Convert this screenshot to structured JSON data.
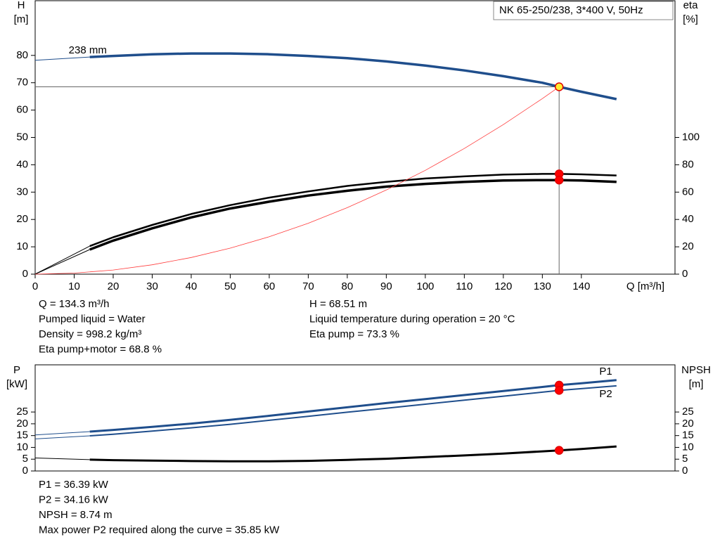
{
  "chart_data": [
    {
      "type": "line",
      "title": "NK 65-250/238, 3*400 V, 50Hz",
      "ylabel": [
        "H",
        "[m]"
      ],
      "y2label": [
        "eta",
        "[%]"
      ],
      "xlabel": "Q [m³/h]",
      "xlim": [
        0,
        164
      ],
      "xticks": [
        0,
        10,
        20,
        30,
        40,
        50,
        60,
        70,
        80,
        90,
        100,
        110,
        120,
        130,
        140
      ],
      "ylim": [
        0,
        100
      ],
      "yticks": [
        0,
        10,
        20,
        30,
        40,
        50,
        60,
        70,
        80
      ],
      "y2lim": [
        0,
        200
      ],
      "y2ticks": [
        0,
        20,
        40,
        60,
        80,
        100
      ],
      "crosshair": true,
      "series": [
        {
          "color": "#1f4e8c",
          "width": 1,
          "x": [
            0,
            14
          ],
          "values": [
            78.2,
            79.4
          ]
        },
        {
          "name": "238 mm",
          "color": "#1f4e8c",
          "width": 3.5,
          "x": [
            14,
            20,
            30,
            40,
            50,
            60,
            70,
            80,
            90,
            100,
            110,
            120,
            130,
            134.3,
            140,
            149
          ],
          "values": [
            79.4,
            79.8,
            80.4,
            80.7,
            80.7,
            80.4,
            79.8,
            79.0,
            77.8,
            76.3,
            74.5,
            72.4,
            70.0,
            68.51,
            66.7,
            64.0
          ]
        },
        {
          "color": "#000000",
          "width": 1,
          "axis": "y2",
          "x": [
            0,
            14
          ],
          "values": [
            0,
            20.5
          ]
        },
        {
          "color": "#000000",
          "width": 2.5,
          "axis": "y2",
          "x": [
            14,
            20,
            30,
            40,
            50,
            60,
            70,
            80,
            90,
            100,
            110,
            120,
            130,
            134.3,
            140,
            149
          ],
          "values": [
            20.5,
            27,
            36,
            44,
            50.5,
            56,
            60.5,
            64.5,
            67.5,
            70,
            71.5,
            72.8,
            73.3,
            73.3,
            73.0,
            72.2
          ]
        },
        {
          "color": "#000000",
          "width": 1,
          "axis": "y2",
          "x": [
            0,
            14
          ],
          "values": [
            0,
            18
          ]
        },
        {
          "color": "#000000",
          "width": 3.5,
          "axis": "y2",
          "x": [
            14,
            20,
            30,
            40,
            50,
            60,
            70,
            80,
            90,
            100,
            110,
            120,
            130,
            134.3,
            140,
            149
          ],
          "values": [
            18,
            24.5,
            33.5,
            41.5,
            48,
            53,
            57.5,
            61,
            64,
            66,
            67.5,
            68.5,
            68.8,
            68.8,
            68.5,
            67.5
          ]
        },
        {
          "color": "#ff3b3b",
          "width": 0.8,
          "x": [
            0,
            10,
            20,
            30,
            40,
            50,
            60,
            70,
            80,
            90,
            100,
            110,
            120,
            130,
            134.3
          ],
          "values": [
            0,
            0.38,
            1.52,
            3.42,
            6.08,
            9.5,
            13.67,
            18.61,
            24.31,
            30.77,
            37.98,
            45.96,
            54.7,
            64.19,
            68.51
          ]
        }
      ],
      "markers": [
        {
          "x": 134.3,
          "y": 68.51,
          "color": "#ffee33"
        },
        {
          "x": 134.3,
          "y": 73.3,
          "color": "#ff0000",
          "axis": "y2"
        },
        {
          "x": 134.3,
          "y": 68.8,
          "color": "#ff0000",
          "axis": "y2"
        }
      ],
      "annotations": [
        [
          "Q = 134.3 m³/h",
          "Pumped liquid = Water",
          "Density = 998.2 kg/m³",
          "Eta pump+motor = 68.8 %"
        ],
        [
          "H = 68.51 m",
          "Liquid temperature during operation = 20 °C",
          "Eta pump = 73.3 %"
        ]
      ]
    },
    {
      "type": "line",
      "ylabel": [
        "P",
        "[kW]"
      ],
      "y2label": [
        "NPSH",
        "[m]"
      ],
      "xlim": [
        0,
        164
      ],
      "ylim": [
        0,
        45
      ],
      "yticks": [
        0,
        5,
        10,
        15,
        20,
        25
      ],
      "y2lim": [
        0,
        45
      ],
      "y2ticks": [
        0,
        5,
        10,
        15,
        20,
        25
      ],
      "series": [
        {
          "color": "#1f4e8c",
          "width": 1,
          "x": [
            0,
            14
          ],
          "values": [
            15.3,
            16.7
          ]
        },
        {
          "name": "P1",
          "color": "#1f4e8c",
          "width": 3,
          "x": [
            14,
            20,
            30,
            40,
            50,
            60,
            70,
            80,
            90,
            100,
            110,
            120,
            130,
            134.3,
            140,
            149
          ],
          "values": [
            16.7,
            17.4,
            18.7,
            20.1,
            21.7,
            23.4,
            25.2,
            27.0,
            28.8,
            30.5,
            32.2,
            33.9,
            35.6,
            36.39,
            37.2,
            38.5
          ]
        },
        {
          "color": "#1f4e8c",
          "width": 1,
          "x": [
            0,
            14
          ],
          "values": [
            13.6,
            14.9
          ]
        },
        {
          "name": "P2",
          "color": "#1f4e8c",
          "width": 2,
          "x": [
            14,
            20,
            30,
            40,
            50,
            60,
            70,
            80,
            90,
            100,
            110,
            120,
            130,
            134.3,
            140,
            149
          ],
          "values": [
            14.9,
            15.6,
            16.9,
            18.3,
            19.8,
            21.5,
            23.2,
            24.9,
            26.6,
            28.3,
            30.0,
            31.7,
            33.4,
            34.16,
            34.9,
            36.1
          ]
        },
        {
          "color": "#000000",
          "width": 1,
          "axis": "y2",
          "x": [
            0,
            14
          ],
          "values": [
            5.5,
            4.8
          ]
        },
        {
          "color": "#000000",
          "width": 3,
          "axis": "y2",
          "x": [
            14,
            20,
            30,
            40,
            50,
            60,
            70,
            80,
            90,
            100,
            110,
            120,
            130,
            134.3,
            140,
            149
          ],
          "values": [
            4.8,
            4.6,
            4.4,
            4.2,
            4.1,
            4.1,
            4.3,
            4.7,
            5.2,
            5.9,
            6.6,
            7.4,
            8.3,
            8.74,
            9.3,
            10.4
          ]
        }
      ],
      "markers": [
        {
          "x": 134.3,
          "y": 36.39,
          "color": "#ff0000"
        },
        {
          "x": 134.3,
          "y": 34.16,
          "color": "#ff0000"
        },
        {
          "x": 134.3,
          "y": 8.74,
          "color": "#ff0000",
          "axis": "y2"
        }
      ],
      "annotations": [
        [
          "P1 = 36.39 kW",
          "P2 = 34.16 kW",
          "NPSH = 8.74 m",
          "Max power P2 required along the curve = 35.85 kW"
        ]
      ]
    }
  ]
}
